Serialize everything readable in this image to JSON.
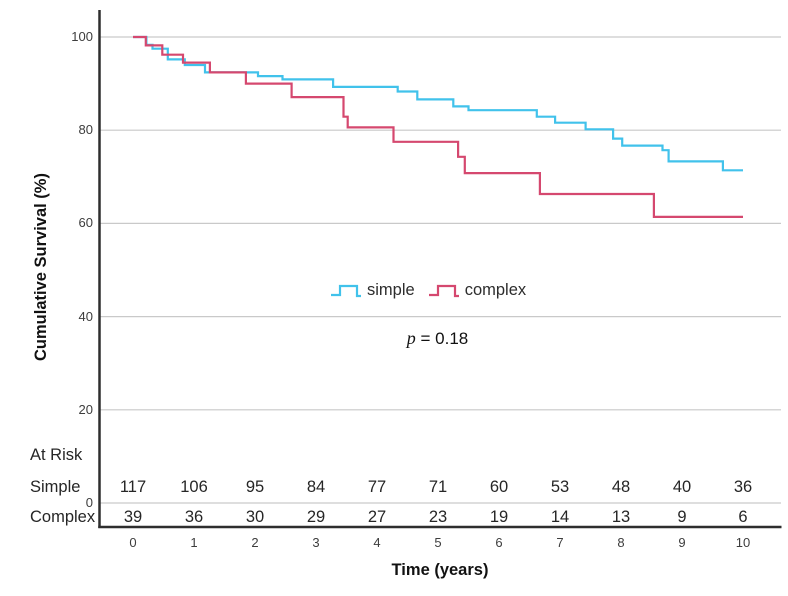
{
  "chart_data": {
    "type": "line",
    "subtype": "kaplan-meier-step",
    "title": "",
    "xlabel": "Time (years)",
    "ylabel": "Cumulative Survival (%)",
    "xlim": [
      0,
      10
    ],
    "ylim": [
      0,
      100
    ],
    "xticks": [
      0,
      1,
      2,
      3,
      4,
      5,
      6,
      7,
      8,
      9,
      10
    ],
    "yticks": [
      100,
      80,
      60,
      40,
      20,
      0
    ],
    "grid": "horizontal-only",
    "legend_position": "center-of-plot",
    "annotation": {
      "p_symbol": "p",
      "p_text": " = 0.18"
    },
    "series": [
      {
        "name": "simple",
        "color": "#41C2EB",
        "step_points": [
          [
            0,
            100
          ],
          [
            0.22,
            98.3
          ],
          [
            0.32,
            97.5
          ],
          [
            0.57,
            95.2
          ],
          [
            0.85,
            94.0
          ],
          [
            1.18,
            92.4
          ],
          [
            2.05,
            91.6
          ],
          [
            2.45,
            90.9
          ],
          [
            3.28,
            89.3
          ],
          [
            4.34,
            88.3
          ],
          [
            4.66,
            86.6
          ],
          [
            5.25,
            85.1
          ],
          [
            5.5,
            84.3
          ],
          [
            6.62,
            82.9
          ],
          [
            6.92,
            81.6
          ],
          [
            7.42,
            80.2
          ],
          [
            7.87,
            78.2
          ],
          [
            8.02,
            76.7
          ],
          [
            8.68,
            75.7
          ],
          [
            8.78,
            73.3
          ],
          [
            9.67,
            71.4
          ],
          [
            10,
            71.4
          ]
        ]
      },
      {
        "name": "complex",
        "color": "#D5486F",
        "step_points": [
          [
            0,
            100
          ],
          [
            0.21,
            98.2
          ],
          [
            0.48,
            96.2
          ],
          [
            0.82,
            94.5
          ],
          [
            1.26,
            92.4
          ],
          [
            1.85,
            90.0
          ],
          [
            2.6,
            87.1
          ],
          [
            3.45,
            82.9
          ],
          [
            3.52,
            80.6
          ],
          [
            4.27,
            77.5
          ],
          [
            5.33,
            74.3
          ],
          [
            5.44,
            70.8
          ],
          [
            6.67,
            66.3
          ],
          [
            8.54,
            61.4
          ],
          [
            10,
            61.4
          ]
        ]
      }
    ],
    "at_risk": {
      "header": "At Risk",
      "rows": [
        {
          "label": "Simple",
          "counts": [
            117,
            106,
            95,
            84,
            77,
            71,
            60,
            53,
            48,
            40,
            36
          ]
        },
        {
          "label": "Complex",
          "counts": [
            39,
            36,
            30,
            29,
            27,
            23,
            19,
            14,
            13,
            9,
            6
          ]
        }
      ]
    }
  },
  "colors": {
    "simple": "#41C2EB",
    "complex": "#D5486F",
    "grid": "#C9C9C9",
    "axis": "#2E2E2E",
    "tick_text": "#3d3d3d"
  }
}
